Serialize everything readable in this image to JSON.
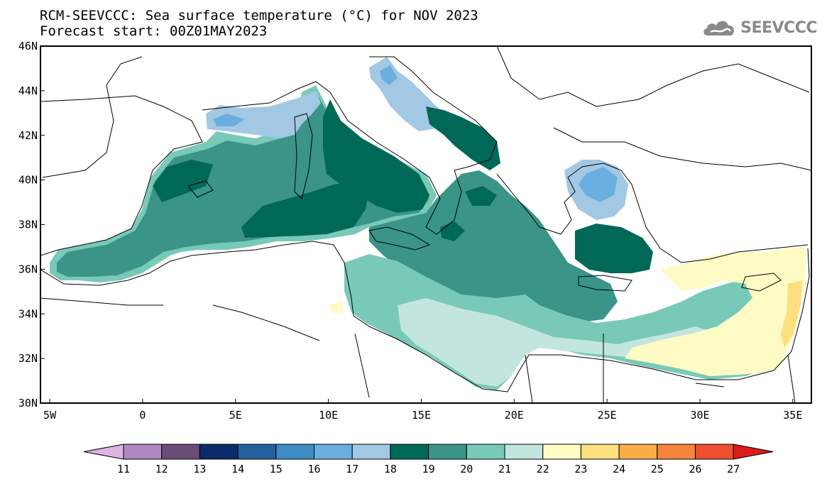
{
  "header": {
    "title_line1": "RCM-SEEVCCC: Sea surface temperature (°C) for NOV 2023",
    "title_line2": "Forecast start: 00Z01MAY2023"
  },
  "logo": {
    "text": "SEEVCCC",
    "icon": "cloud-icon",
    "color": "#8a8a8a"
  },
  "map": {
    "lat_labels": [
      "46N",
      "44N",
      "42N",
      "40N",
      "38N",
      "36N",
      "34N",
      "32N",
      "30N"
    ],
    "lon_labels": [
      "5W",
      "0",
      "5E",
      "10E",
      "15E",
      "20E",
      "25E",
      "30E",
      "35E"
    ],
    "extent": {
      "lon_min": -5.5,
      "lon_max": 36,
      "lat_min": 30,
      "lat_max": 46
    }
  },
  "colorbar": {
    "labels": [
      "11",
      "12",
      "13",
      "14",
      "15",
      "16",
      "17",
      "18",
      "19",
      "20",
      "21",
      "22",
      "23",
      "24",
      "25",
      "26",
      "27"
    ],
    "under_color": "#dcb6e2",
    "colors": [
      "#b087c0",
      "#6a4c76",
      "#0b2a6b",
      "#23619e",
      "#3e8cc5",
      "#6aaee0",
      "#a2c8e4",
      "#006857",
      "#3a9488",
      "#79c9b8",
      "#c2e6df",
      "#fefbc5",
      "#fddf7e",
      "#fbad47",
      "#f6843a",
      "#ef4f2e"
    ],
    "over_color": "#da1c1c"
  }
}
